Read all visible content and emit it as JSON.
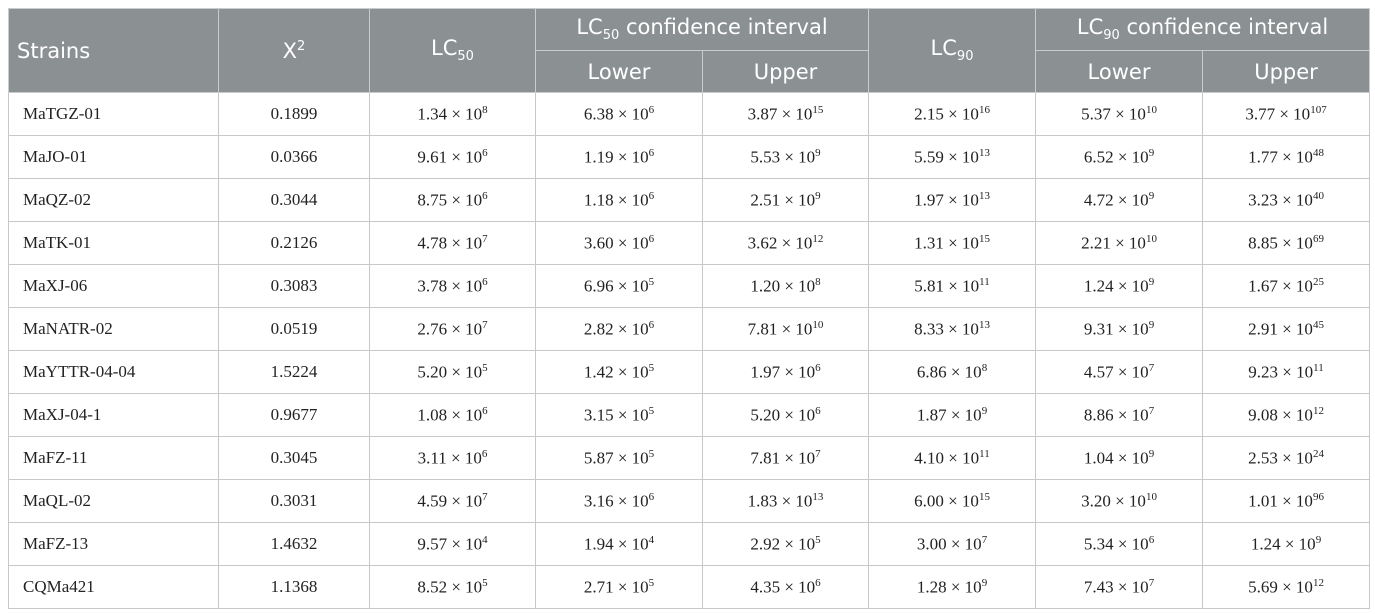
{
  "table": {
    "columns": [
      {
        "text": "Strains"
      },
      {
        "text": "X",
        "sup": "2"
      },
      {
        "text": "LC",
        "sub": "50"
      },
      {
        "text": "LC",
        "sub": "50",
        "tail": " confidence interval"
      },
      {
        "text": "LC",
        "sub": "90"
      },
      {
        "text": "LC",
        "sub": "90",
        "tail": " confidence interval"
      }
    ],
    "subcolumns": [
      "Lower",
      "Upper",
      "Lower",
      "Upper"
    ],
    "rows": [
      [
        "MaTGZ-01",
        "0.1899",
        [
          "1.34 × 10",
          "8"
        ],
        [
          "6.38 × 10",
          "6"
        ],
        [
          "3.87 × 10",
          "15"
        ],
        [
          "2.15 × 10",
          "16"
        ],
        [
          "5.37 × 10",
          "10"
        ],
        [
          "3.77 × 10",
          "107"
        ]
      ],
      [
        "MaJO-01",
        "0.0366",
        [
          "9.61 × 10",
          "6"
        ],
        [
          "1.19 × 10",
          "6"
        ],
        [
          "5.53 × 10",
          "9"
        ],
        [
          "5.59 × 10",
          "13"
        ],
        [
          "6.52 × 10",
          "9"
        ],
        [
          "1.77 × 10",
          "48"
        ]
      ],
      [
        "MaQZ-02",
        "0.3044",
        [
          "8.75 × 10",
          "6"
        ],
        [
          "1.18 × 10",
          "6"
        ],
        [
          "2.51 × 10",
          "9"
        ],
        [
          "1.97 × 10",
          "13"
        ],
        [
          "4.72 × 10",
          "9"
        ],
        [
          "3.23 × 10",
          "40"
        ]
      ],
      [
        "MaTK-01",
        "0.2126",
        [
          "4.78 × 10",
          "7"
        ],
        [
          "3.60 × 10",
          "6"
        ],
        [
          "3.62 × 10",
          "12"
        ],
        [
          "1.31 × 10",
          "15"
        ],
        [
          "2.21 × 10",
          "10"
        ],
        [
          "8.85 × 10",
          "69"
        ]
      ],
      [
        "MaXJ-06",
        "0.3083",
        [
          "3.78 × 10",
          "6"
        ],
        [
          "6.96 × 10",
          "5"
        ],
        [
          "1.20 × 10",
          "8"
        ],
        [
          "5.81 × 10",
          "11"
        ],
        [
          "1.24 × 10",
          "9"
        ],
        [
          "1.67 × 10",
          "25"
        ]
      ],
      [
        "MaNATR-02",
        "0.0519",
        [
          "2.76 × 10",
          "7"
        ],
        [
          "2.82 × 10",
          "6"
        ],
        [
          "7.81 × 10",
          "10"
        ],
        [
          "8.33 × 10",
          "13"
        ],
        [
          "9.31 × 10",
          "9"
        ],
        [
          "2.91 × 10",
          "45"
        ]
      ],
      [
        "MaYTTR-04-04",
        "1.5224",
        [
          "5.20 × 10",
          "5"
        ],
        [
          "1.42 × 10",
          "5"
        ],
        [
          "1.97 × 10",
          "6"
        ],
        [
          "6.86 × 10",
          "8"
        ],
        [
          "4.57 × 10",
          "7"
        ],
        [
          "9.23 × 10",
          "11"
        ]
      ],
      [
        "MaXJ-04-1",
        "0.9677",
        [
          "1.08 × 10",
          "6"
        ],
        [
          "3.15 × 10",
          "5"
        ],
        [
          "5.20 × 10",
          "6"
        ],
        [
          "1.87 × 10",
          "9"
        ],
        [
          "8.86 × 10",
          "7"
        ],
        [
          "9.08 × 10",
          "12"
        ]
      ],
      [
        "MaFZ-11",
        "0.3045",
        [
          "3.11 × 10",
          "6"
        ],
        [
          "5.87 × 10",
          "5"
        ],
        [
          "7.81 × 10",
          "7"
        ],
        [
          "4.10 × 10",
          "11"
        ],
        [
          "1.04 × 10",
          "9"
        ],
        [
          "2.53 × 10",
          "24"
        ]
      ],
      [
        "MaQL-02",
        "0.3031",
        [
          "4.59 × 10",
          "7"
        ],
        [
          "3.16 × 10",
          "6"
        ],
        [
          "1.83 × 10",
          "13"
        ],
        [
          "6.00 × 10",
          "15"
        ],
        [
          "3.20 × 10",
          "10"
        ],
        [
          "1.01 × 10",
          "96"
        ]
      ],
      [
        "MaFZ-13",
        "1.4632",
        [
          "9.57 × 10",
          "4"
        ],
        [
          "1.94 × 10",
          "4"
        ],
        [
          "2.92 × 10",
          "5"
        ],
        [
          "3.00 × 10",
          "7"
        ],
        [
          "5.34 × 10",
          "6"
        ],
        [
          "1.24 × 10",
          "9"
        ]
      ],
      [
        "CQMa421",
        "1.1368",
        [
          "8.52 × 10",
          "5"
        ],
        [
          "2.71 × 10",
          "5"
        ],
        [
          "4.35 × 10",
          "6"
        ],
        [
          "1.28 × 10",
          "9"
        ],
        [
          "7.43 × 10",
          "7"
        ],
        [
          "5.69 × 10",
          "12"
        ]
      ]
    ]
  }
}
